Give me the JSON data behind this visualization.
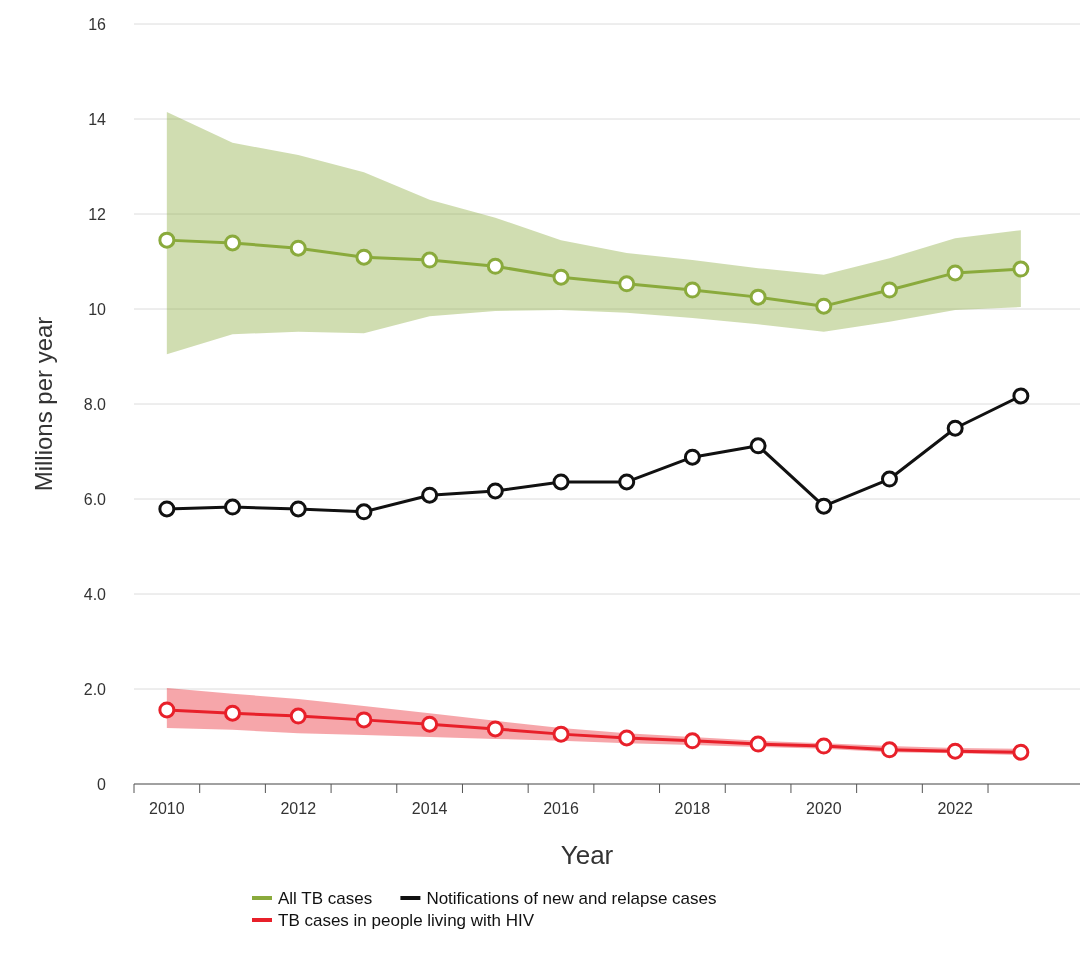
{
  "chart_data": {
    "type": "line",
    "xlabel": "Year",
    "ylabel": "Millions per year",
    "x": [
      2010,
      2011,
      2012,
      2013,
      2014,
      2015,
      2016,
      2017,
      2018,
      2019,
      2020,
      2021,
      2022,
      2023
    ],
    "xlim": [
      2009.5,
      2023.9
    ],
    "xticks": [
      {
        "value": 2009.5,
        "label": null
      },
      2010,
      {
        "value": 2010.5,
        "label": null
      },
      {
        "value": 2011.5,
        "label": null
      },
      2012,
      {
        "value": 2012.5,
        "label": null
      },
      {
        "value": 2013.5,
        "label": null
      },
      2014,
      {
        "value": 2014.5,
        "label": null
      },
      {
        "value": 2015.5,
        "label": null
      },
      2016,
      {
        "value": 2016.5,
        "label": null
      },
      {
        "value": 2017.5,
        "label": null
      },
      2018,
      {
        "value": 2018.5,
        "label": null
      },
      {
        "value": 2019.5,
        "label": null
      },
      2020,
      {
        "value": 2020.5,
        "label": null
      },
      {
        "value": 2021.5,
        "label": null
      },
      2022,
      {
        "value": 2022.5,
        "label": null
      }
    ],
    "ylim": [
      0,
      16
    ],
    "yticks": [
      0,
      {
        "value": 2,
        "label": "2.0"
      },
      {
        "value": 4,
        "label": "4.0"
      },
      {
        "value": 6,
        "label": "6.0"
      },
      {
        "value": 8,
        "label": "8.0"
      },
      10,
      12,
      14,
      16
    ],
    "grid": "y",
    "legend": "bottom",
    "marker": "circle",
    "line_style": "solid",
    "series": [
      {
        "name": "All TB cases",
        "color": "#8aaa3c",
        "values": [
          11.45,
          11.39,
          11.28,
          11.09,
          11.03,
          10.9,
          10.67,
          10.53,
          10.4,
          10.25,
          10.06,
          10.4,
          10.76,
          10.84
        ],
        "lower": [
          9.05,
          9.47,
          9.52,
          9.49,
          9.85,
          9.96,
          9.98,
          9.92,
          9.81,
          9.68,
          9.52,
          9.73,
          9.98,
          10.04
        ],
        "upper": [
          14.15,
          13.5,
          13.24,
          12.88,
          12.3,
          11.92,
          11.45,
          11.18,
          11.03,
          10.86,
          10.72,
          11.07,
          11.49,
          11.66
        ]
      },
      {
        "name": "Notifications of new and relapse cases",
        "color": "#111111",
        "values": [
          5.79,
          5.83,
          5.79,
          5.73,
          6.08,
          6.17,
          6.36,
          6.36,
          6.88,
          7.12,
          5.85,
          6.42,
          7.49,
          8.17
        ]
      },
      {
        "name": "TB cases in people living with HIV",
        "color": "#e8202a",
        "values": [
          1.56,
          1.49,
          1.43,
          1.35,
          1.26,
          1.16,
          1.05,
          0.97,
          0.91,
          0.84,
          0.8,
          0.72,
          0.69,
          0.67
        ],
        "lower": [
          1.18,
          1.14,
          1.07,
          1.03,
          0.99,
          0.95,
          0.91,
          0.86,
          0.82,
          0.78,
          0.74,
          0.67,
          0.65,
          0.61
        ],
        "upper": [
          2.02,
          1.9,
          1.79,
          1.64,
          1.49,
          1.33,
          1.18,
          1.07,
          0.99,
          0.91,
          0.86,
          0.8,
          0.76,
          0.74
        ]
      }
    ]
  }
}
